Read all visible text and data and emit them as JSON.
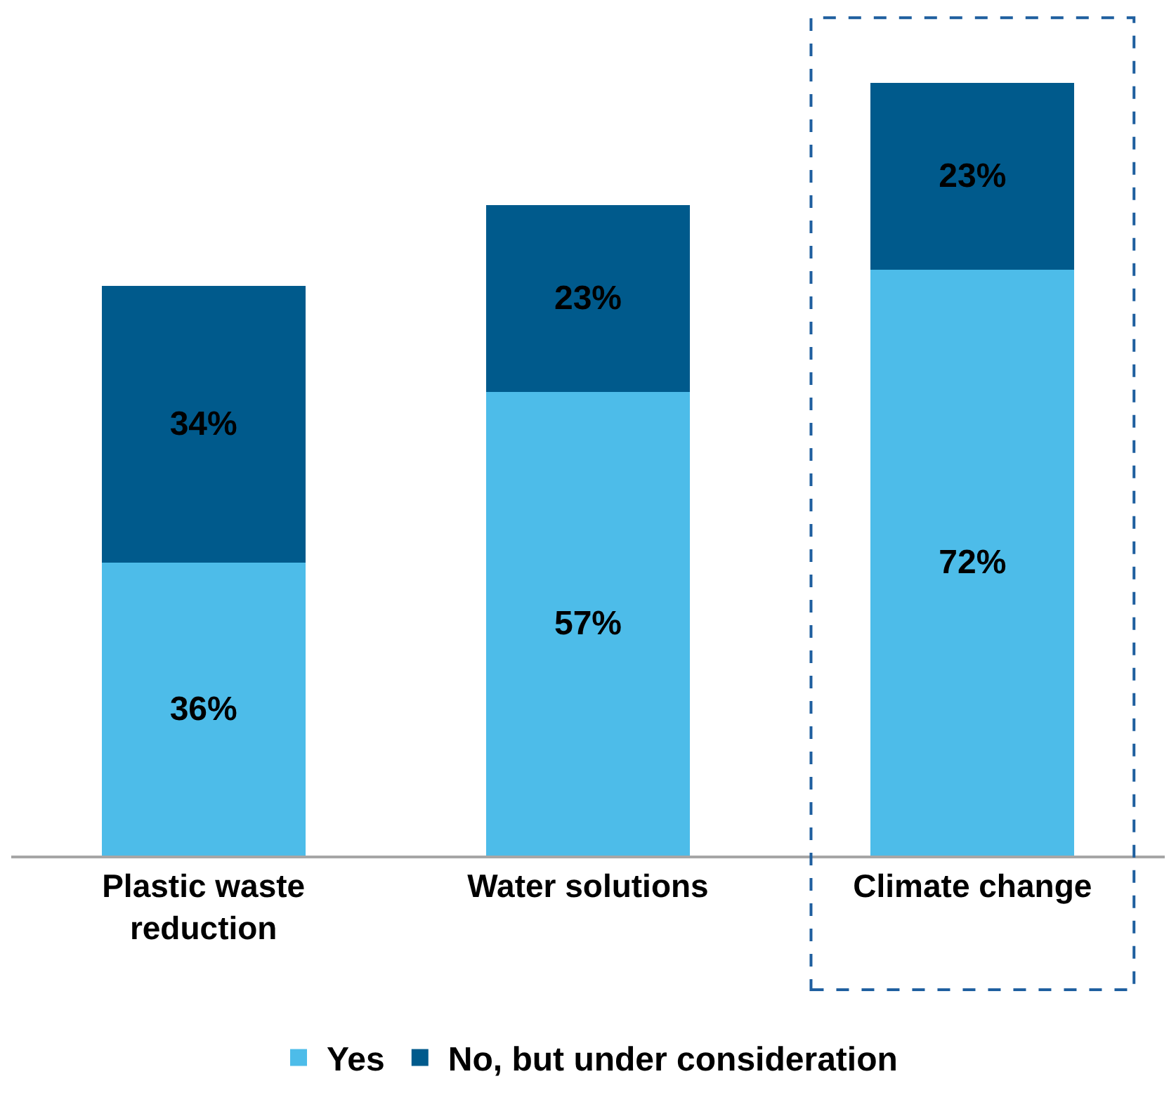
{
  "chart_data": {
    "type": "bar",
    "stacked": true,
    "categories": [
      "Plastic waste reduction",
      "Water solutions",
      "Climate change"
    ],
    "series": [
      {
        "name": "Yes",
        "color": "#4dbce9",
        "values": [
          36,
          57,
          72
        ],
        "value_labels": [
          "36%",
          "57%",
          "72%"
        ]
      },
      {
        "name": "No, but under consideration",
        "color": "#005a8c",
        "values": [
          34,
          23,
          23
        ],
        "value_labels": [
          "34%",
          "23%",
          "23%"
        ]
      }
    ],
    "tick_labels": "x",
    "legend": "bottom"
  }
}
